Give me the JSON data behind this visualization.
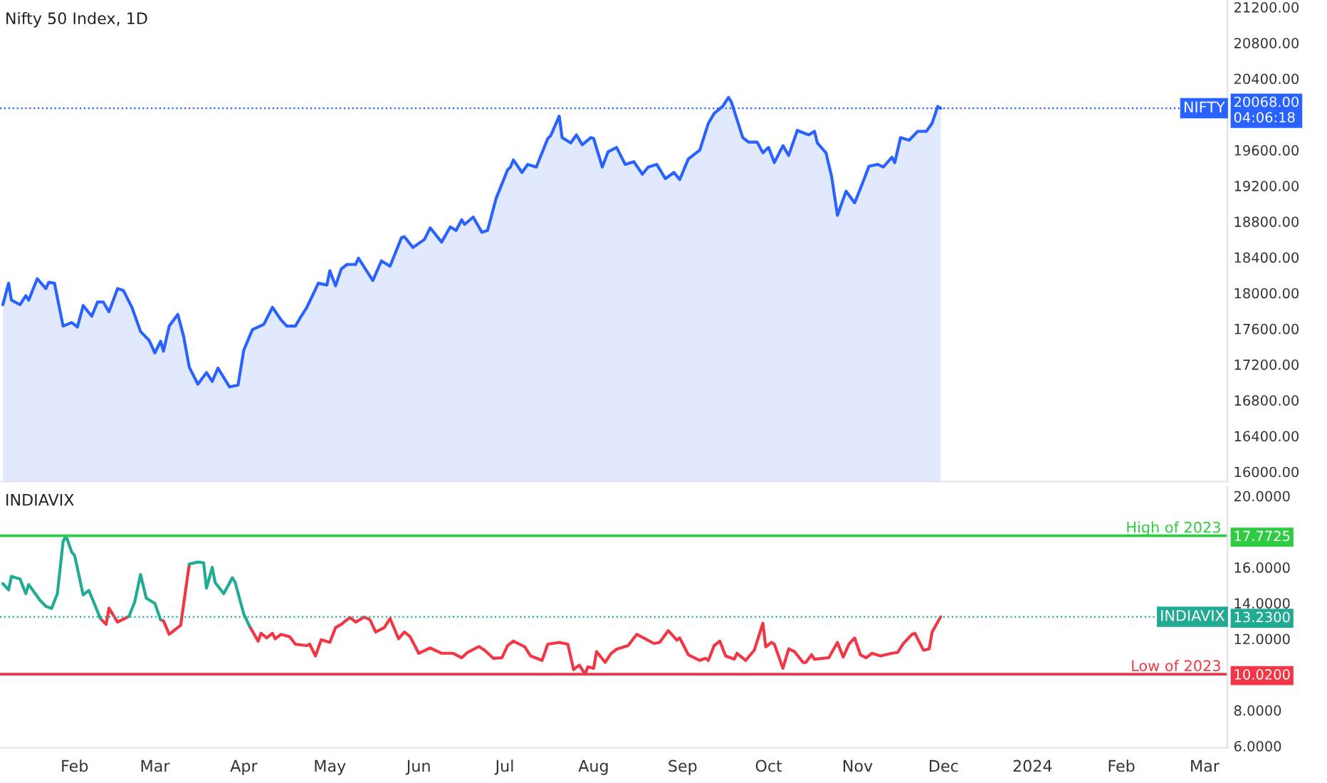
{
  "chart_data": [
    {
      "type": "area",
      "title": "Nifty 50 Index, 1D",
      "tick_labels": "y",
      "xlim": [
        "2023-01-06",
        "2024-03-09"
      ],
      "ylim": [
        15890,
        21280
      ],
      "yticks": [
        {
          "value": 16000,
          "label": "16000.00"
        },
        {
          "value": 16400,
          "label": "16400.00"
        },
        {
          "value": 16800,
          "label": "16800.00"
        },
        {
          "value": 17200,
          "label": "17200.00"
        },
        {
          "value": 17600,
          "label": "17600.00"
        },
        {
          "value": 18000,
          "label": "18000.00"
        },
        {
          "value": 18400,
          "label": "18400.00"
        },
        {
          "value": 18800,
          "label": "18800.00"
        },
        {
          "value": 19200,
          "label": "19200.00"
        },
        {
          "value": 19600,
          "label": "19600.00"
        },
        {
          "value": 20068,
          "label": "20068.00\n04:06:18"
        },
        {
          "value": 20400,
          "label": "20400.00"
        },
        {
          "value": 20800,
          "label": "20800.00"
        },
        {
          "value": 21200,
          "label": "21200.00"
        }
      ],
      "ref_lines": [
        {
          "axis": "y",
          "value": 20068,
          "label": "NIFTY",
          "color": "#2962ff",
          "line_style": "dotted"
        }
      ],
      "series": [
        {
          "color": "#2962ff",
          "x": [
            "2023-01-07",
            "2023-01-09",
            "2023-01-10",
            "2023-01-13",
            "2023-01-15",
            "2023-01-16",
            "2023-01-19",
            "2023-01-22",
            "2023-01-23",
            "2023-01-25",
            "2023-01-28",
            "2023-01-31",
            "2023-02-02",
            "2023-02-04",
            "2023-02-07",
            "2023-02-09",
            "2023-02-11",
            "2023-02-13",
            "2023-02-16",
            "2023-02-18",
            "2023-02-21",
            "2023-02-24",
            "2023-02-27",
            "2023-03-01",
            "2023-03-03",
            "2023-03-04",
            "2023-03-06",
            "2023-03-09",
            "2023-03-11",
            "2023-03-13",
            "2023-03-16",
            "2023-03-19",
            "2023-03-21",
            "2023-03-23",
            "2023-03-27",
            "2023-03-30",
            "2023-04-01",
            "2023-04-04",
            "2023-04-08",
            "2023-04-11",
            "2023-04-14",
            "2023-04-16",
            "2023-04-19",
            "2023-04-21",
            "2023-04-23",
            "2023-04-27",
            "2023-04-30",
            "2023-05-01",
            "2023-05-03",
            "2023-05-05",
            "2023-05-07",
            "2023-05-10",
            "2023-05-11",
            "2023-05-16",
            "2023-05-19",
            "2023-05-22",
            "2023-05-26",
            "2023-05-27",
            "2023-05-30",
            "2023-06-03",
            "2023-06-05",
            "2023-06-09",
            "2023-06-12",
            "2023-06-14",
            "2023-06-16",
            "2023-06-17",
            "2023-06-20",
            "2023-06-23",
            "2023-06-25",
            "2023-06-28",
            "2023-07-02",
            "2023-07-03",
            "2023-07-04",
            "2023-07-07",
            "2023-07-09",
            "2023-07-12",
            "2023-07-16",
            "2023-07-17",
            "2023-07-20",
            "2023-07-21",
            "2023-07-24",
            "2023-07-26",
            "2023-07-28",
            "2023-07-31",
            "2023-08-01",
            "2023-08-04",
            "2023-08-06",
            "2023-08-09",
            "2023-08-12",
            "2023-08-15",
            "2023-08-18",
            "2023-08-20",
            "2023-08-23",
            "2023-08-26",
            "2023-08-29",
            "2023-08-31",
            "2023-09-03",
            "2023-09-07",
            "2023-09-10",
            "2023-09-12",
            "2023-09-15",
            "2023-09-17",
            "2023-09-18",
            "2023-09-22",
            "2023-09-24",
            "2023-09-27",
            "2023-09-29",
            "2023-10-01",
            "2023-10-03",
            "2023-10-06",
            "2023-10-08",
            "2023-10-11",
            "2023-10-15",
            "2023-10-17",
            "2023-10-18",
            "2023-10-21",
            "2023-10-23",
            "2023-10-25",
            "2023-10-28",
            "2023-10-31",
            "2023-11-03",
            "2023-11-05",
            "2023-11-08",
            "2023-11-10",
            "2023-11-13",
            "2023-11-14",
            "2023-11-16",
            "2023-11-19",
            "2023-11-22",
            "2023-11-25",
            "2023-11-27",
            "2023-11-29",
            "2023-11-30"
          ],
          "values": [
            17870,
            18110,
            17920,
            17870,
            17970,
            17920,
            18160,
            18050,
            18120,
            18110,
            17630,
            17670,
            17620,
            17860,
            17740,
            17900,
            17900,
            17790,
            18050,
            18030,
            17840,
            17570,
            17470,
            17330,
            17460,
            17350,
            17630,
            17760,
            17520,
            17170,
            16980,
            17110,
            17010,
            17160,
            16950,
            16970,
            17360,
            17590,
            17650,
            17840,
            17700,
            17630,
            17630,
            17740,
            17840,
            18110,
            18090,
            18250,
            18080,
            18270,
            18320,
            18320,
            18390,
            18140,
            18360,
            18300,
            18620,
            18630,
            18510,
            18600,
            18730,
            18570,
            18740,
            18700,
            18820,
            18770,
            18850,
            18680,
            18700,
            19060,
            19380,
            19410,
            19490,
            19350,
            19440,
            19410,
            19730,
            19760,
            19980,
            19740,
            19680,
            19770,
            19660,
            19740,
            19730,
            19410,
            19580,
            19630,
            19440,
            19470,
            19330,
            19410,
            19440,
            19280,
            19350,
            19270,
            19500,
            19600,
            19900,
            20010,
            20090,
            20190,
            20140,
            19740,
            19690,
            19690,
            19570,
            19630,
            19460,
            19650,
            19540,
            19820,
            19770,
            19810,
            19680,
            19570,
            19300,
            18870,
            19140,
            19010,
            19250,
            19420,
            19440,
            19410,
            19520,
            19460,
            19740,
            19710,
            19810,
            19810,
            19900,
            20090,
            20068
          ]
        }
      ]
    },
    {
      "type": "line",
      "title": "INDIAVIX",
      "xlim": [
        "2023-01-06",
        "2024-03-09"
      ],
      "ylim": [
        5.9,
        20.5
      ],
      "xticks": [
        {
          "value": "2023-02-01",
          "label": "Feb"
        },
        {
          "value": "2023-03-01",
          "label": "Mar"
        },
        {
          "value": "2023-04-01",
          "label": "Apr"
        },
        {
          "value": "2023-05-01",
          "label": "May"
        },
        {
          "value": "2023-06-01",
          "label": "Jun"
        },
        {
          "value": "2023-07-01",
          "label": "Jul"
        },
        {
          "value": "2023-08-01",
          "label": "Aug"
        },
        {
          "value": "2023-09-01",
          "label": "Sep"
        },
        {
          "value": "2023-10-01",
          "label": "Oct"
        },
        {
          "value": "2023-11-01",
          "label": "Nov"
        },
        {
          "value": "2023-12-01",
          "label": "Dec"
        },
        {
          "value": "2024-01-01",
          "label": "2024"
        },
        {
          "value": "2024-02-01",
          "label": "Feb"
        },
        {
          "value": "2024-03-01",
          "label": "Mar"
        }
      ],
      "yticks": [
        {
          "value": 6,
          "label": "6.0000"
        },
        {
          "value": 8,
          "label": "8.0000"
        },
        {
          "value": 10.02,
          "label": "10.0200"
        },
        {
          "value": 12,
          "label": "12.0000"
        },
        {
          "value": 13.23,
          "label": "13.2300"
        },
        {
          "value": 14,
          "label": "14.0000"
        },
        {
          "value": 16,
          "label": "16.0000"
        },
        {
          "value": 17.7725,
          "label": "17.7725"
        },
        {
          "value": 20,
          "label": "20.0000"
        }
      ],
      "ref_lines": [
        {
          "axis": "y",
          "value": 17.7725,
          "label": "High of 2023",
          "color": "#2ecc40",
          "line_style": "solid"
        },
        {
          "axis": "y",
          "value": 10.02,
          "label": "Low of 2023",
          "color": "#f23645",
          "line_style": "solid"
        },
        {
          "axis": "y",
          "value": 13.23,
          "label": "INDIAVIX",
          "color": "#22ab94",
          "line_style": "dotted"
        }
      ],
      "series": [
        {
          "color": "#f23645",
          "x": [
            "2023-02-10",
            "2023-02-12",
            "2023-02-13",
            "2023-02-16",
            "2023-02-20",
            "2023-02-22",
            "2023-03-03",
            "2023-03-04",
            "2023-03-06",
            "2023-03-10",
            "2023-03-13",
            "2023-03-16",
            "2023-04-03",
            "2023-04-06",
            "2023-04-07",
            "2023-04-09",
            "2023-04-11",
            "2023-04-12",
            "2023-04-14",
            "2023-04-17",
            "2023-04-19",
            "2023-04-23",
            "2023-04-24",
            "2023-04-26",
            "2023-04-28",
            "2023-05-01",
            "2023-05-03",
            "2023-05-05",
            "2023-05-08",
            "2023-05-10",
            "2023-05-13",
            "2023-05-15",
            "2023-05-17",
            "2023-05-20",
            "2023-05-22",
            "2023-05-25",
            "2023-05-27",
            "2023-05-29",
            "2023-06-01",
            "2023-06-05",
            "2023-06-09",
            "2023-06-13",
            "2023-06-16",
            "2023-06-18",
            "2023-06-22",
            "2023-06-24",
            "2023-06-27",
            "2023-06-30",
            "2023-07-02",
            "2023-07-04",
            "2023-07-08",
            "2023-07-10",
            "2023-07-14",
            "2023-07-16",
            "2023-07-20",
            "2023-07-23",
            "2023-07-25",
            "2023-07-27",
            "2023-07-29",
            "2023-07-30",
            "2023-08-01",
            "2023-08-02",
            "2023-08-05",
            "2023-08-07",
            "2023-08-09",
            "2023-08-13",
            "2023-08-16",
            "2023-08-19",
            "2023-08-22",
            "2023-08-24",
            "2023-08-27",
            "2023-08-30",
            "2023-08-31",
            "2023-09-03",
            "2023-09-07",
            "2023-09-09",
            "2023-09-10",
            "2023-09-12",
            "2023-09-14",
            "2023-09-16",
            "2023-09-19",
            "2023-09-20",
            "2023-09-23",
            "2023-09-26",
            "2023-09-29",
            "2023-09-30",
            "2023-10-02",
            "2023-10-03",
            "2023-10-06",
            "2023-10-08",
            "2023-10-10",
            "2023-10-13",
            "2023-10-14",
            "2023-10-16",
            "2023-10-17",
            "2023-10-22",
            "2023-10-25",
            "2023-10-27",
            "2023-10-29",
            "2023-10-31",
            "2023-11-02",
            "2023-11-04",
            "2023-11-06",
            "2023-11-09",
            "2023-11-13",
            "2023-11-15",
            "2023-11-17",
            "2023-11-20",
            "2023-11-21",
            "2023-11-24",
            "2023-11-26",
            "2023-11-27",
            "2023-11-30"
          ],
          "values": [
            13.14,
            12.81,
            13.72,
            12.94,
            13.26,
            null,
            13.07,
            13.01,
            12.25,
            12.76,
            16.18,
            null,
            12.71,
            11.87,
            12.31,
            12.05,
            12.31,
            12.0,
            12.25,
            12.12,
            11.7,
            11.62,
            11.7,
            11.04,
            11.95,
            11.8,
            12.63,
            12.81,
            13.2,
            12.94,
            13.22,
            13.07,
            12.38,
            12.63,
            13.14,
            12.0,
            12.38,
            12.12,
            11.19,
            11.49,
            11.19,
            11.19,
            10.94,
            11.24,
            11.57,
            11.36,
            10.91,
            10.94,
            11.62,
            11.87,
            11.55,
            11.04,
            10.79,
            11.7,
            11.8,
            11.7,
            10.28,
            10.53,
            10.02,
            10.43,
            10.35,
            11.29,
            10.68,
            11.17,
            11.42,
            11.62,
            12.25,
            12.0,
            11.74,
            11.8,
            12.46,
            11.93,
            12.05,
            11.11,
            10.79,
            10.91,
            10.79,
            11.62,
            11.87,
            11.04,
            10.86,
            11.19,
            10.79,
            11.36,
            12.88,
            11.55,
            11.8,
            11.7,
            10.35,
            11.44,
            11.29,
            10.68,
            10.68,
            11.11,
            10.86,
            10.94,
            11.8,
            10.98,
            11.7,
            12.05,
            11.11,
            10.94,
            11.19,
            11.04,
            11.19,
            11.24,
            11.74,
            12.25,
            12.31,
            11.36,
            11.44,
            12.38,
            13.23
          ]
        },
        {
          "color": "#22ab94",
          "x": [
            "2023-01-07",
            "2023-01-09",
            "2023-01-10",
            "2023-01-13",
            "2023-01-15",
            "2023-01-16",
            "2023-01-20",
            "2023-01-22",
            "2023-01-24",
            "2023-01-26",
            "2023-01-28",
            "2023-01-29",
            "2023-01-31",
            "2023-02-01",
            "2023-02-04",
            "2023-02-06",
            "2023-02-10",
            "2023-02-12",
            "2023-02-20",
            "2023-02-22",
            "2023-02-24",
            "2023-02-26",
            "2023-03-01",
            "2023-03-03",
            "2023-03-04",
            "2023-03-13",
            "2023-03-16",
            "2023-03-18",
            "2023-03-19",
            "2023-03-21",
            "2023-03-22",
            "2023-03-25",
            "2023-03-28",
            "2023-03-29",
            "2023-04-01",
            "2023-04-03"
          ],
          "values": [
            15.09,
            14.74,
            15.5,
            15.35,
            14.53,
            15.04,
            14.15,
            13.82,
            13.7,
            14.53,
            17.44,
            17.77,
            16.86,
            16.68,
            14.46,
            14.71,
            13.14,
            null,
            13.26,
            14.08,
            15.6,
            14.28,
            13.98,
            13.07,
            null,
            16.18,
            16.3,
            16.26,
            14.84,
            16.0,
            15.16,
            14.53,
            15.42,
            15.16,
            13.39,
            12.71
          ]
        }
      ]
    }
  ]
}
